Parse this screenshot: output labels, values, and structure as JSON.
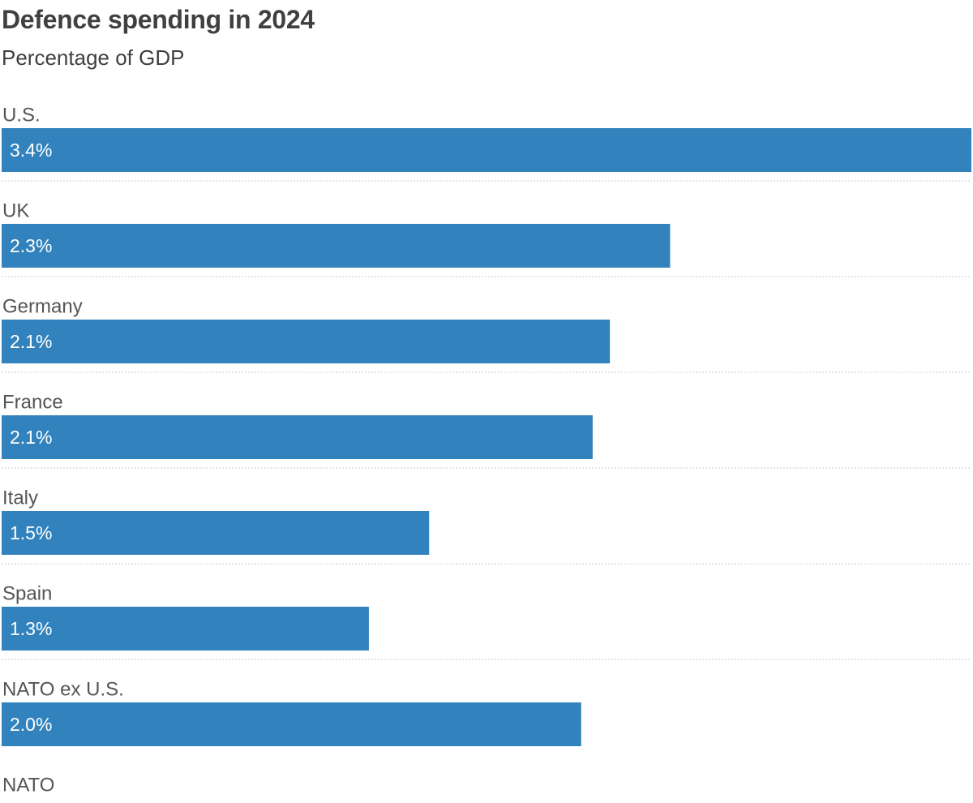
{
  "chart_data": {
    "type": "bar",
    "orientation": "horizontal",
    "title": "Defence spending in 2024",
    "subtitle": "Percentage of GDP",
    "categories": [
      "U.S.",
      "UK",
      "Germany",
      "France",
      "Italy",
      "Spain",
      "NATO ex U.S.",
      "NATO"
    ],
    "values": [
      3.38,
      2.33,
      2.12,
      2.06,
      1.49,
      1.28,
      2.02,
      null
    ],
    "value_labels": [
      "3.4%",
      "2.3%",
      "2.1%",
      "2.1%",
      "1.5%",
      "1.3%",
      "2.0%",
      ""
    ],
    "xlim": [
      0,
      3.38
    ],
    "bar_color": "#3182bd",
    "separator_color": "#cccccc",
    "grid": false
  }
}
